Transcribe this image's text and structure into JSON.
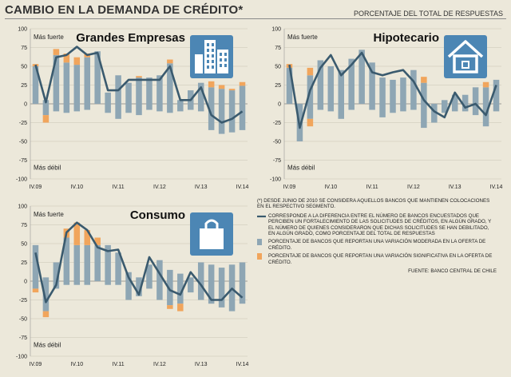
{
  "header": {
    "title": "CAMBIO EN LA DEMANDA DE CRÉDITO*",
    "subtitle": "PORCENTAJE DEL TOTAL DE RESPUESTAS"
  },
  "colors": {
    "moderate_bar": "#8ea6b4",
    "significant_bar": "#f1a55c",
    "line": "#3a5a6e",
    "icon_bg": "#4c86b4"
  },
  "axis_common": {
    "y_ticks": [
      "100",
      "75",
      "50",
      "25",
      "0",
      "-25",
      "-50",
      "-75",
      "-100"
    ],
    "x_ticks": [
      "IV.09",
      "IV.10",
      "IV.11",
      "IV.12",
      "IV.13",
      "IV.14"
    ],
    "strong_label": "Más fuerte",
    "weak_label": "Más débil"
  },
  "chart_data": [
    {
      "type": "bar",
      "title": "Grandes Empresas",
      "icon": "building-icon",
      "ylim": [
        -100,
        100
      ],
      "series": [
        {
          "name": "moderada_pos",
          "values": [
            50,
            5,
            65,
            55,
            52,
            62,
            70,
            15,
            38,
            28,
            35,
            35,
            38,
            54,
            5,
            18,
            28,
            22,
            20,
            18,
            24
          ]
        },
        {
          "name": "significativa_pos",
          "values": [
            3,
            0,
            8,
            12,
            10,
            5,
            0,
            0,
            0,
            0,
            2,
            0,
            0,
            5,
            0,
            0,
            0,
            8,
            5,
            2,
            5
          ]
        },
        {
          "name": "moderada_neg",
          "values": [
            0,
            -15,
            -10,
            -12,
            -10,
            -8,
            0,
            -12,
            -20,
            -12,
            -15,
            -8,
            -10,
            -12,
            -10,
            -8,
            -10,
            -35,
            -40,
            -38,
            -35
          ]
        },
        {
          "name": "significativa_neg",
          "values": [
            0,
            -10,
            0,
            0,
            0,
            0,
            0,
            0,
            0,
            0,
            0,
            0,
            0,
            0,
            0,
            0,
            0,
            0,
            0,
            0,
            0
          ]
        },
        {
          "name": "indice",
          "values": [
            52,
            2,
            62,
            65,
            76,
            65,
            68,
            18,
            18,
            32,
            32,
            32,
            32,
            50,
            5,
            5,
            22,
            -15,
            -25,
            -20,
            -10
          ]
        }
      ]
    },
    {
      "type": "bar",
      "title": "Hipotecario",
      "icon": "house-icon",
      "ylim": [
        -100,
        100
      ],
      "series": [
        {
          "name": "moderada_pos",
          "values": [
            48,
            0,
            38,
            58,
            50,
            45,
            60,
            72,
            55,
            35,
            32,
            35,
            45,
            28,
            0,
            5,
            12,
            12,
            22,
            22,
            32
          ]
        },
        {
          "name": "significativa_pos",
          "values": [
            5,
            0,
            10,
            0,
            0,
            0,
            0,
            0,
            0,
            0,
            0,
            0,
            0,
            8,
            0,
            0,
            0,
            0,
            0,
            7,
            0
          ]
        },
        {
          "name": "moderada_neg",
          "values": [
            0,
            -50,
            -20,
            -8,
            -10,
            -20,
            -8,
            0,
            -8,
            -18,
            -12,
            -10,
            -8,
            -32,
            -25,
            -12,
            -10,
            -10,
            -15,
            -30,
            -10
          ]
        },
        {
          "name": "significativa_neg",
          "values": [
            0,
            0,
            -10,
            0,
            0,
            0,
            0,
            0,
            0,
            0,
            0,
            0,
            0,
            0,
            0,
            0,
            0,
            0,
            0,
            0,
            0
          ]
        },
        {
          "name": "indice",
          "values": [
            52,
            -32,
            18,
            48,
            65,
            38,
            52,
            68,
            42,
            38,
            42,
            45,
            30,
            5,
            -10,
            -18,
            15,
            -5,
            0,
            -15,
            25
          ]
        }
      ]
    },
    {
      "type": "bar",
      "title": "Consumo",
      "icon": "shopping-bag-icon",
      "ylim": [
        -100,
        100
      ],
      "series": [
        {
          "name": "moderada_pos",
          "values": [
            48,
            5,
            25,
            58,
            48,
            48,
            48,
            48,
            38,
            12,
            5,
            22,
            28,
            15,
            10,
            5,
            25,
            22,
            18,
            22,
            25
          ]
        },
        {
          "name": "significativa_pos",
          "values": [
            0,
            0,
            0,
            12,
            30,
            20,
            10,
            0,
            0,
            0,
            0,
            0,
            0,
            0,
            0,
            0,
            0,
            0,
            0,
            0,
            0
          ]
        },
        {
          "name": "moderada_neg",
          "values": [
            -10,
            -40,
            -10,
            -5,
            -5,
            -5,
            0,
            -5,
            -5,
            -25,
            -20,
            -10,
            -25,
            -32,
            -30,
            -15,
            -25,
            -30,
            -35,
            -40,
            -30
          ]
        },
        {
          "name": "significativa_neg",
          "values": [
            -5,
            -8,
            0,
            0,
            0,
            0,
            0,
            0,
            0,
            0,
            0,
            0,
            0,
            -5,
            -10,
            0,
            0,
            0,
            0,
            0,
            0
          ]
        },
        {
          "name": "indice",
          "values": [
            38,
            -28,
            -5,
            65,
            78,
            68,
            45,
            40,
            42,
            5,
            -18,
            32,
            10,
            -12,
            -18,
            12,
            -5,
            -25,
            -25,
            -10,
            -22
          ]
        }
      ]
    }
  ],
  "legend": {
    "note": "(*) Desde junio de 2010 se considera aquellos bancos que mantienen colocaciones en el respectivo segmento.",
    "line_label": "Corresponde a la diferencia entre el número de bancos encuestados que perciben un fortalecimiento de las solicitudes de créditos, en algún grado, y el número de quienes consideraron que dichas solicitudes se han debilitado, en algún grado, como porcentaje del total de respuestas",
    "moderate_label": "Porcentaje de bancos que reportan una variación moderada en la oferta de crédito.",
    "significant_label": "Porcentaje de bancos que reportan una variación significativa en la oferta de crédito.",
    "source": "Fuente: Banco Central de Chile"
  }
}
